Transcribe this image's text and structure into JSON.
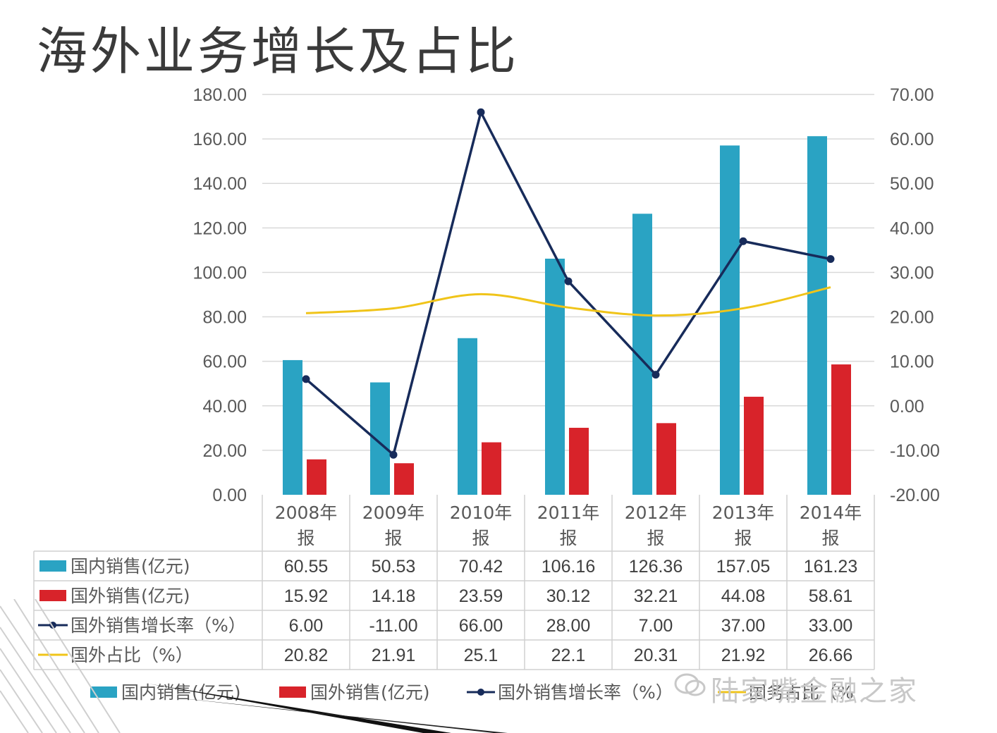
{
  "title": "海外业务增长及占比",
  "watermark": "陆家嘴金融之家",
  "colors": {
    "domestic": "#2aa3c3",
    "foreign": "#d8232a",
    "growth": "#172b5a",
    "share": "#f0c419",
    "grid": "#d9d9d9",
    "axis_text": "#595959"
  },
  "chart_data": {
    "type": "bar",
    "categories": [
      [
        "2008年",
        "报"
      ],
      [
        "2009年",
        "报"
      ],
      [
        "2010年",
        "报"
      ],
      [
        "2011年",
        "报"
      ],
      [
        "2012年",
        "报"
      ],
      [
        "2013年",
        "报"
      ],
      [
        "2014年",
        "报"
      ]
    ],
    "y_left": {
      "min": 0,
      "max": 180,
      "step": 20,
      "ticks": [
        "0.00",
        "20.00",
        "40.00",
        "60.00",
        "80.00",
        "100.00",
        "120.00",
        "140.00",
        "160.00",
        "180.00"
      ]
    },
    "y_right": {
      "min": -20,
      "max": 70,
      "step": 10,
      "ticks": [
        "-20.00",
        "-10.00",
        "0.00",
        "10.00",
        "20.00",
        "30.00",
        "40.00",
        "50.00",
        "60.00",
        "70.00"
      ]
    },
    "grid": true,
    "legend_position": "bottom",
    "series": [
      {
        "name": "国内销售(亿元)",
        "type": "bar",
        "axis": "left",
        "color_key": "domestic",
        "values": [
          60.55,
          50.53,
          70.42,
          106.16,
          126.36,
          157.05,
          161.23
        ],
        "labels": [
          "60.55",
          "50.53",
          "70.42",
          "106.16",
          "126.36",
          "157.05",
          "161.23"
        ]
      },
      {
        "name": "国外销售(亿元)",
        "type": "bar",
        "axis": "left",
        "color_key": "foreign",
        "values": [
          15.92,
          14.18,
          23.59,
          30.12,
          32.21,
          44.08,
          58.61
        ],
        "labels": [
          "15.92",
          "14.18",
          "23.59",
          "30.12",
          "32.21",
          "44.08",
          "58.61"
        ]
      },
      {
        "name": "国外销售增长率（%）",
        "type": "line",
        "axis": "right",
        "color_key": "growth",
        "markers": true,
        "values": [
          6.0,
          -11.0,
          66.0,
          28.0,
          7.0,
          37.0,
          33.0
        ],
        "labels": [
          "6.00",
          "-11.00",
          "66.00",
          "28.00",
          "7.00",
          "37.00",
          "33.00"
        ]
      },
      {
        "name": "国外占比（%）",
        "type": "line",
        "axis": "right",
        "color_key": "share",
        "markers": false,
        "smooth": true,
        "values": [
          20.82,
          21.91,
          25.1,
          22.1,
          20.31,
          21.92,
          26.66
        ],
        "labels": [
          "20.82",
          "21.91",
          "25.1",
          "22.1",
          "20.31",
          "21.92",
          "26.66"
        ]
      }
    ],
    "legend": [
      {
        "label": "国内销售(亿元)",
        "swatch": "bar",
        "color_key": "domestic"
      },
      {
        "label": "国外销售(亿元)",
        "swatch": "bar",
        "color_key": "foreign"
      },
      {
        "label": "国外销售增长率（%）",
        "swatch": "line-marker",
        "color_key": "growth"
      },
      {
        "label": "国务占比（%",
        "swatch": "line",
        "color_key": "share"
      }
    ]
  }
}
